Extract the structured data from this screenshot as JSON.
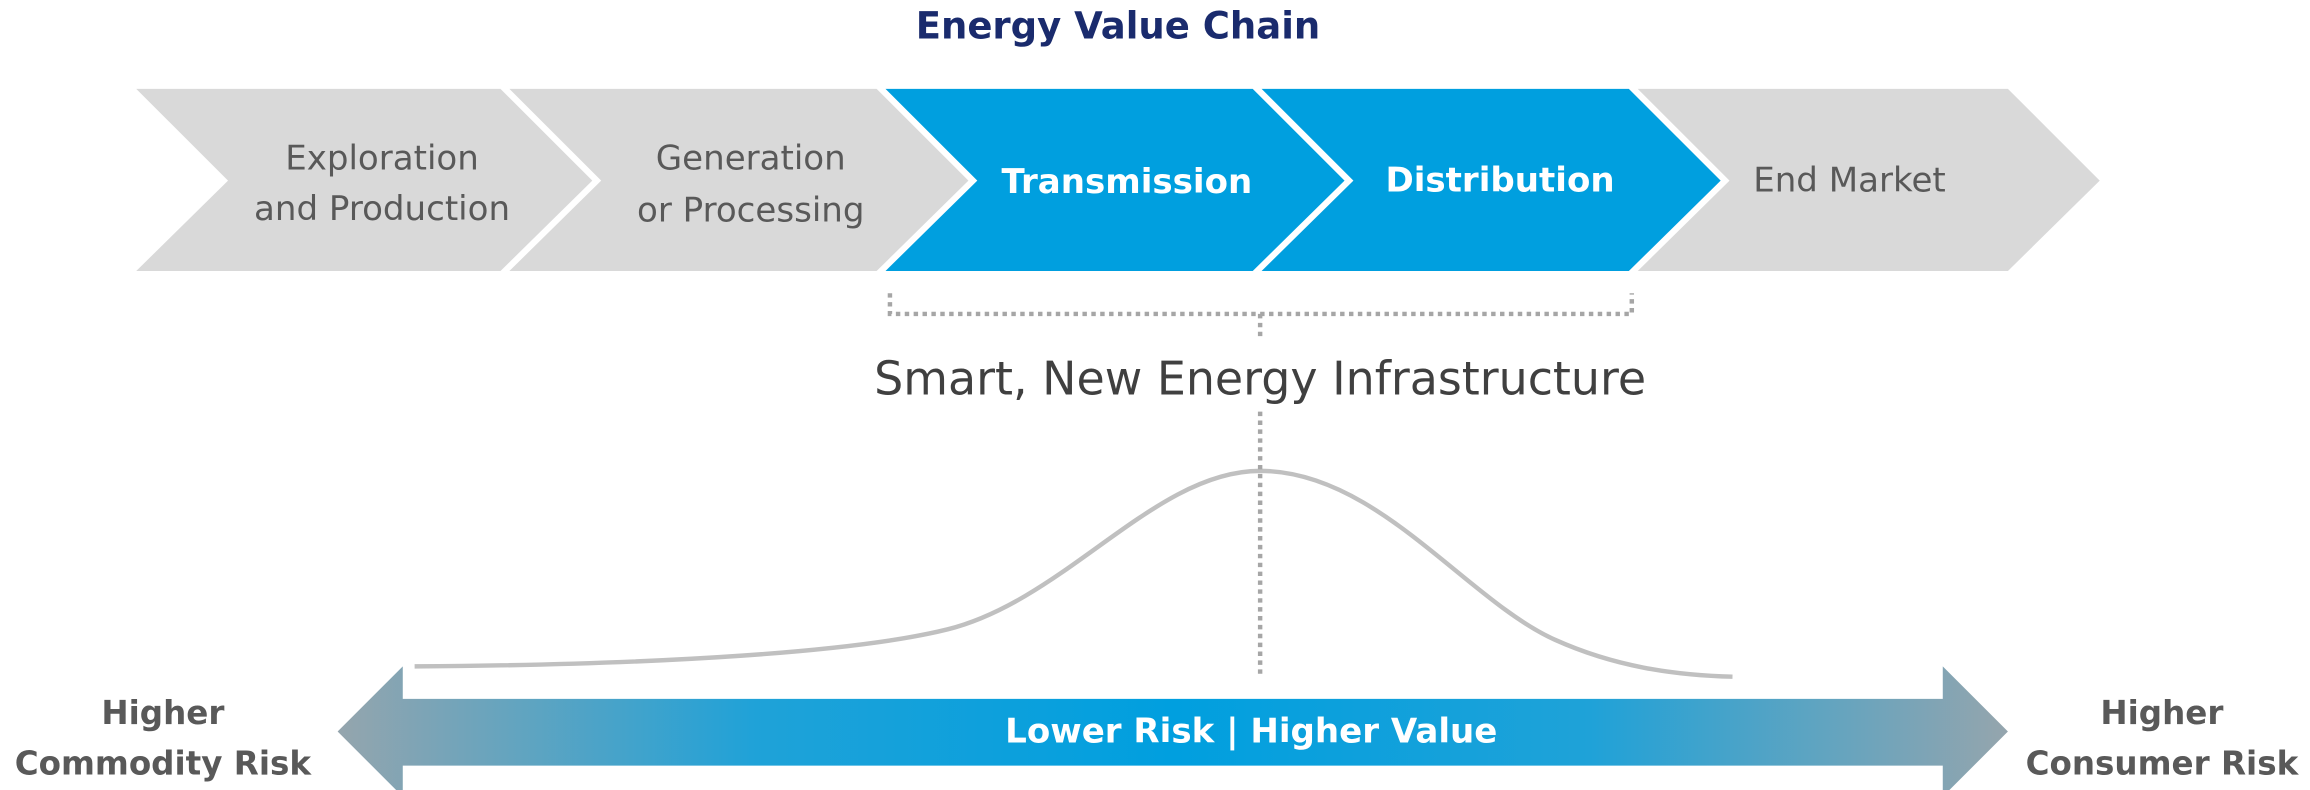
{
  "title": "Energy Value Chain",
  "stages": [
    [
      "Exploration",
      "and Production"
    ],
    [
      "Generation",
      "or Processing"
    ],
    [
      "Transmission"
    ],
    [
      "Distribution"
    ],
    [
      "End Market"
    ]
  ],
  "bracket_label": "Smart, New Energy Infrastructure",
  "arrow_label": "Lower Risk | Higher Value",
  "left_label": [
    "Higher",
    "Commodity Risk"
  ],
  "right_label": [
    "Higher",
    "Consumer Risk"
  ]
}
